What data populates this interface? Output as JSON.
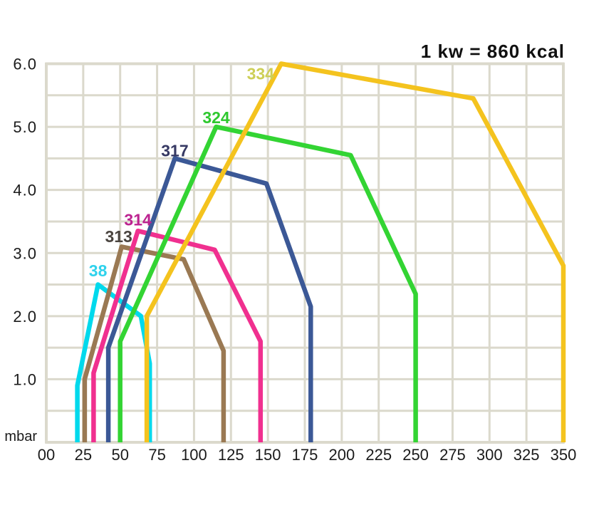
{
  "title": "1 kw = 860 kcal",
  "chart_data": {
    "type": "line",
    "annotation": "1 kw = 860 kcal",
    "background": "#FFFFFF",
    "grid": "on",
    "grid_color": "#DBD9CC",
    "axis_text_color": "#1B1B1B",
    "x_axis": {
      "tick_labels": [
        "00",
        "25",
        "50",
        "75",
        "100",
        "125",
        "150",
        "175",
        "200",
        "225",
        "250",
        "275",
        "300",
        "325",
        "350"
      ],
      "range": [
        0,
        350
      ],
      "grid_step": 25
    },
    "y_axis": {
      "unit_label": "mbar",
      "tick_labels": [
        "6.0",
        "5.0",
        "4.0",
        "3.0",
        "2.0",
        "1.0"
      ],
      "range": [
        0,
        6
      ],
      "grid_step": 0.5
    },
    "series": [
      {
        "name": "38",
        "color": "#00D9EC",
        "label_color": "#2FD2EC",
        "label_at": [
          35,
          2.72
        ],
        "points": [
          [
            21,
            0
          ],
          [
            21,
            0.9
          ],
          [
            35,
            2.5
          ],
          [
            64,
            2.0
          ],
          [
            70,
            1.25
          ],
          [
            70,
            0
          ]
        ]
      },
      {
        "name": "313",
        "color": "#9A7953",
        "label_color": "#4A443F",
        "label_at": [
          49,
          3.26
        ],
        "points": [
          [
            26,
            0
          ],
          [
            26,
            1.0
          ],
          [
            51,
            3.1
          ],
          [
            93,
            2.9
          ],
          [
            120,
            1.45
          ],
          [
            120,
            0
          ]
        ]
      },
      {
        "name": "314",
        "color": "#F0308F",
        "label_color": "#BC2390",
        "label_at": [
          62,
          3.53
        ],
        "points": [
          [
            32,
            0
          ],
          [
            32,
            1.1
          ],
          [
            62,
            3.35
          ],
          [
            114,
            3.05
          ],
          [
            145,
            1.6
          ],
          [
            145,
            0
          ]
        ]
      },
      {
        "name": "317",
        "color": "#3B5896",
        "label_color": "#363963",
        "label_at": [
          87,
          4.62
        ],
        "points": [
          [
            42,
            0
          ],
          [
            42,
            1.5
          ],
          [
            87,
            4.5
          ],
          [
            149,
            4.1
          ],
          [
            179,
            2.15
          ],
          [
            179,
            0
          ]
        ]
      },
      {
        "name": "324",
        "color": "#33D433",
        "label_color": "#2EC82E",
        "label_at": [
          115,
          5.15
        ],
        "points": [
          [
            50,
            0
          ],
          [
            50,
            1.6
          ],
          [
            115,
            5.0
          ],
          [
            206,
            4.55
          ],
          [
            250,
            2.35
          ],
          [
            250,
            0
          ]
        ]
      },
      {
        "name": "334",
        "color": "#F4C31E",
        "label_color": "#CDCF56",
        "label_at": [
          145,
          5.84
        ],
        "points": [
          [
            68,
            0
          ],
          [
            68,
            2.0
          ],
          [
            159,
            6.0
          ],
          [
            289,
            5.45
          ],
          [
            350,
            2.8
          ],
          [
            350,
            0
          ]
        ]
      }
    ]
  }
}
